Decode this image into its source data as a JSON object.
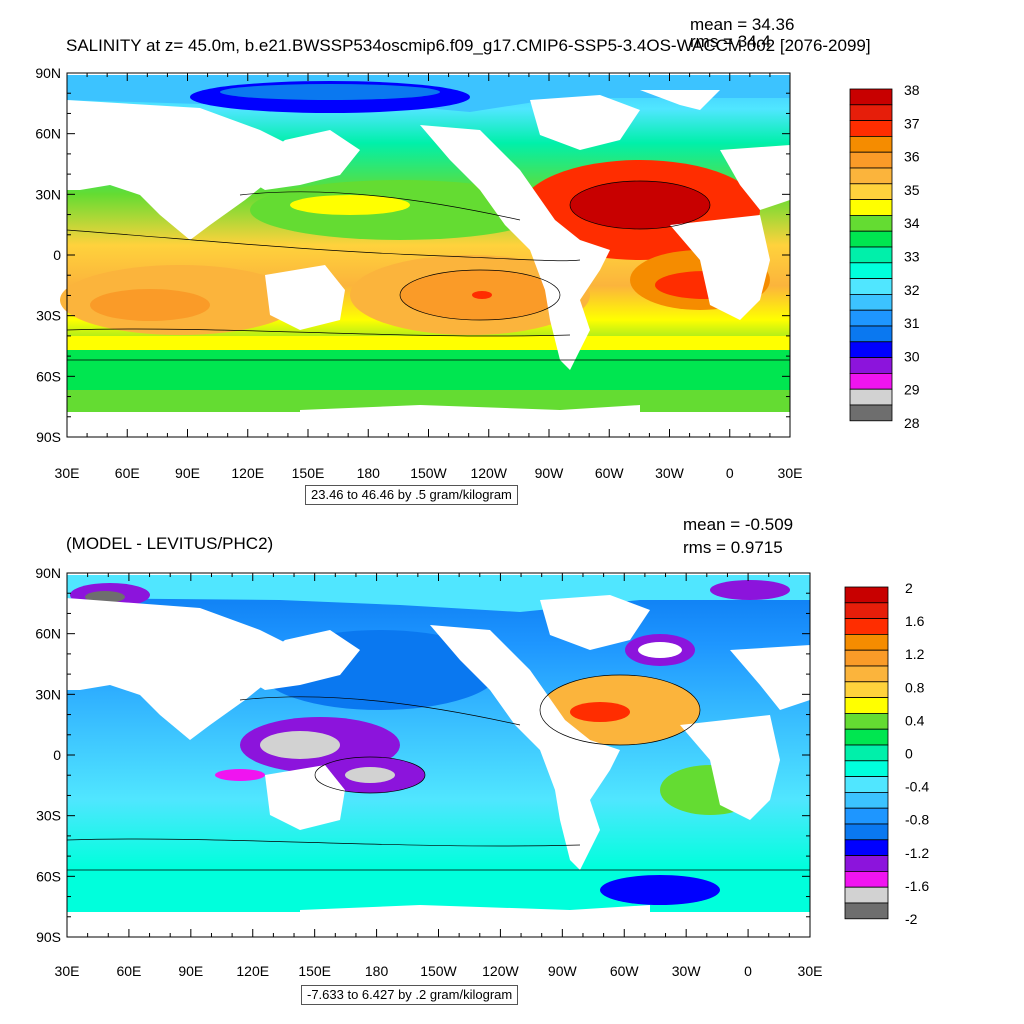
{
  "panels": [
    {
      "title": "SALINITY at z=  45.0m, b.e21.BWSSP534oscmip6.f09_g17.CMIP6-SSP5-3.4OS-WACCM.002 [2076-2099]",
      "mean": "mean = 34.36",
      "rms": "rms = 34.4",
      "range_box": "23.46 to 46.46 by .5 gram/kilogram",
      "colorbar_labels": [
        "38",
        "37",
        "36",
        "35",
        "34",
        "33",
        "32",
        "31",
        "30",
        "29",
        "28"
      ],
      "colorbar_colors": [
        "#c80000",
        "#e61e0a",
        "#ff2d00",
        "#f58c00",
        "#fa9b28",
        "#fbb43c",
        "#ffd23c",
        "#ffff00",
        "#64dc32",
        "#00e650",
        "#00f0aa",
        "#00ffdc",
        "#50e6ff",
        "#3cc3ff",
        "#1e96ff",
        "#0a78f0",
        "#0000ff",
        "#8c14dc",
        "#f014f0",
        "#d2d2d2",
        "#6e6e6e"
      ]
    },
    {
      "title": "(MODEL - LEVITUS/PHC2)",
      "mean": "mean = -0.509",
      "rms": "rms = 0.9715",
      "range_box": "-7.633 to 6.427 by .2 gram/kilogram",
      "colorbar_labels": [
        "2",
        "1.6",
        "1.2",
        "0.8",
        "0.4",
        "0",
        "-0.4",
        "-0.8",
        "-1.2",
        "-1.6",
        "-2"
      ],
      "colorbar_colors": [
        "#c80000",
        "#e61e0a",
        "#ff2d00",
        "#f58c00",
        "#fa9b28",
        "#fbb43c",
        "#ffd23c",
        "#ffff00",
        "#64dc32",
        "#00e650",
        "#00f0aa",
        "#00ffdc",
        "#50e6ff",
        "#3cc3ff",
        "#1e96ff",
        "#0a78f0",
        "#0000ff",
        "#8c14dc",
        "#f014f0",
        "#d2d2d2",
        "#6e6e6e"
      ]
    }
  ],
  "axes": {
    "lon_labels": [
      "30E",
      "60E",
      "90E",
      "120E",
      "150E",
      "180",
      "150W",
      "120W",
      "90W",
      "60W",
      "30W",
      "0",
      "30E"
    ],
    "lat_labels": [
      "90N",
      "60N",
      "30N",
      "0",
      "30S",
      "60S",
      "90S"
    ]
  }
}
